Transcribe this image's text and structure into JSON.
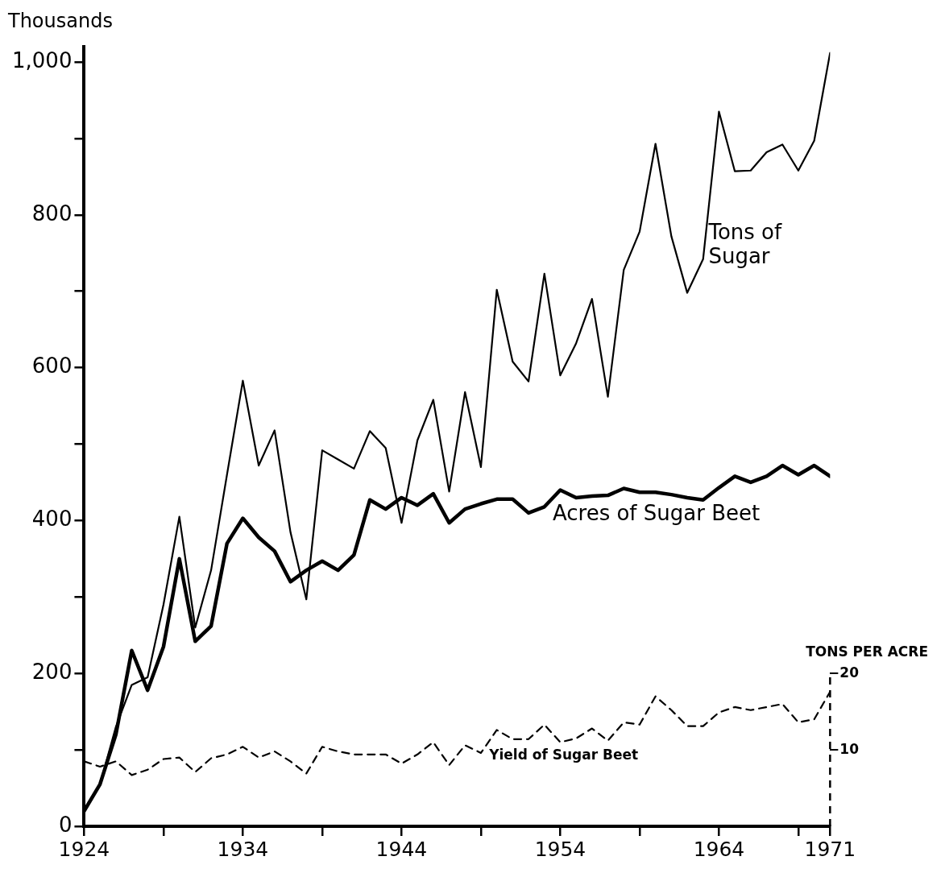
{
  "chart_data": {
    "type": "line",
    "ylabel": "Thousands",
    "y2label": "TONS PER ACRE",
    "x": [
      1924,
      1925,
      1926,
      1927,
      1928,
      1929,
      1930,
      1931,
      1932,
      1933,
      1934,
      1935,
      1936,
      1937,
      1938,
      1939,
      1940,
      1941,
      1942,
      1943,
      1944,
      1945,
      1946,
      1947,
      1948,
      1949,
      1950,
      1951,
      1952,
      1953,
      1954,
      1955,
      1956,
      1957,
      1958,
      1959,
      1960,
      1961,
      1962,
      1963,
      1964,
      1965,
      1966,
      1967,
      1968,
      1969,
      1970,
      1971
    ],
    "series": [
      {
        "name": "Tons of Sugar",
        "color": "#000000",
        "line_style": "solid",
        "values": [
          20,
          55,
          130,
          185,
          195,
          290,
          405,
          260,
          335,
          460,
          583,
          472,
          518,
          385,
          297,
          492,
          480,
          468,
          517,
          495,
          397,
          505,
          558,
          438,
          568,
          470,
          702,
          608,
          582,
          723,
          590,
          632,
          690,
          562,
          728,
          778,
          893,
          772,
          698,
          742,
          935,
          857,
          858,
          882,
          892,
          858,
          897,
          1012
        ]
      },
      {
        "name": "Acres of Sugar Beet",
        "color": "#000000",
        "line_style": "solid",
        "values": [
          20,
          55,
          120,
          230,
          178,
          235,
          350,
          242,
          262,
          370,
          403,
          378,
          360,
          320,
          335,
          347,
          335,
          355,
          427,
          415,
          430,
          420,
          435,
          397,
          415,
          422,
          428,
          428,
          410,
          418,
          440,
          430,
          432,
          433,
          442,
          437,
          437,
          434,
          430,
          427,
          443,
          458,
          450,
          458,
          472,
          460,
          472,
          458
        ]
      },
      {
        "name": "Yield of Sugar Beet",
        "color": "#000000",
        "line_style": "dashed",
        "axis": "y2",
        "values": [
          8.5,
          7.8,
          8.5,
          6.7,
          7.4,
          8.8,
          9.0,
          7.1,
          8.9,
          9.4,
          10.4,
          9.0,
          9.8,
          8.5,
          6.9,
          10.4,
          9.8,
          9.4,
          9.4,
          9.4,
          8.2,
          9.4,
          11.0,
          8.0,
          10.6,
          9.6,
          12.6,
          11.4,
          11.4,
          13.3,
          11.0,
          11.5,
          12.8,
          11.2,
          13.6,
          13.3,
          17.0,
          15.2,
          13.1,
          13.1,
          14.9,
          15.6,
          15.2,
          15.6,
          16.0,
          13.6,
          14.0,
          17.6
        ]
      }
    ],
    "xlim": [
      1924,
      1971
    ],
    "xticks": [
      1924,
      {
        "value": 1929,
        "label": null
      },
      1934,
      {
        "value": 1939,
        "label": null
      },
      1944,
      {
        "value": 1949,
        "label": null
      },
      1954,
      {
        "value": 1959,
        "label": null
      },
      1964,
      {
        "value": 1969,
        "label": null
      },
      1971
    ],
    "ylim": [
      0,
      1020
    ],
    "yticks": [
      0,
      {
        "value": 100,
        "label": null
      },
      200,
      {
        "value": 300,
        "label": null
      },
      400,
      {
        "value": 500,
        "label": null
      },
      600,
      {
        "value": 700,
        "label": null
      },
      800,
      {
        "value": 900,
        "label": null
      },
      {
        "value": 1000,
        "label": "1,000"
      }
    ],
    "y2lim": [
      0,
      102
    ],
    "y2ticks": [
      10,
      20
    ],
    "grid": false,
    "legend": false,
    "marker": "none"
  }
}
